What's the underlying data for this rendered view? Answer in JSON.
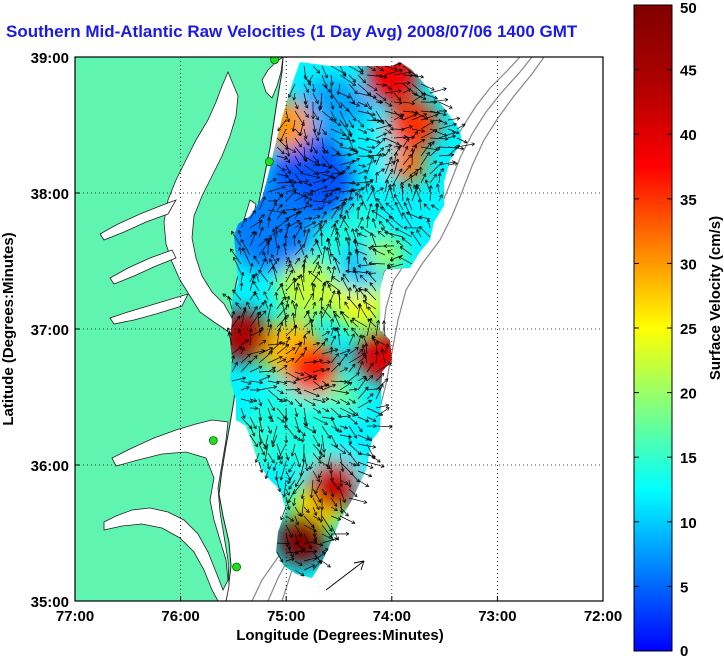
{
  "title": "Southern Mid-Atlantic Raw Velocities (1 Day Avg) 2008/07/06 1400 GMT",
  "colors": {
    "land": "#5ff5b0",
    "ocean": "#ffffff",
    "coast": "#222222",
    "bathy": "#888888",
    "arrow": "#000000",
    "station": "#22dd22",
    "title": "#1a1ae6"
  },
  "chart_data": {
    "type": "heatmap",
    "xlabel": "Longitude (Degrees:Minutes)",
    "ylabel": "Latitude (Degrees:Minutes)",
    "xlim": [
      -77.0,
      -72.0
    ],
    "ylim": [
      35.0,
      39.0
    ],
    "x_ticks": [
      {
        "value": -77.0,
        "label": "77:00"
      },
      {
        "value": -76.0,
        "label": "76:00"
      },
      {
        "value": -75.0,
        "label": "75:00"
      },
      {
        "value": -74.0,
        "label": "74:00"
      },
      {
        "value": -73.0,
        "label": "73:00"
      },
      {
        "value": -72.0,
        "label": "72:00"
      }
    ],
    "y_ticks": [
      {
        "value": 35.0,
        "label": "35:00"
      },
      {
        "value": 36.0,
        "label": "36:00"
      },
      {
        "value": 37.0,
        "label": "37:00"
      },
      {
        "value": 38.0,
        "label": "38:00"
      },
      {
        "value": 39.0,
        "label": "39:00"
      }
    ],
    "grid": true,
    "colorbar": {
      "label": "Surface Velocity (cm/s)",
      "min": 0,
      "max": 50,
      "ticks": [
        0,
        5,
        10,
        15,
        20,
        25,
        30,
        35,
        40,
        45,
        50
      ],
      "colormap": "jet"
    },
    "stations": [
      {
        "lon": -75.11,
        "lat": 38.98
      },
      {
        "lon": -75.16,
        "lat": 38.23
      },
      {
        "lon": -75.69,
        "lat": 36.18
      },
      {
        "lon": -75.47,
        "lat": 35.25
      }
    ],
    "velocity_hotspots": [
      {
        "lon": -74.85,
        "lat": 35.45,
        "speed_cm_s": 50
      },
      {
        "lon": -74.55,
        "lat": 35.85,
        "speed_cm_s": 42
      },
      {
        "lon": -75.4,
        "lat": 36.95,
        "speed_cm_s": 44
      },
      {
        "lon": -74.75,
        "lat": 36.7,
        "speed_cm_s": 36
      },
      {
        "lon": -74.1,
        "lat": 36.8,
        "speed_cm_s": 40
      },
      {
        "lon": -73.8,
        "lat": 38.5,
        "speed_cm_s": 35
      },
      {
        "lon": -74.0,
        "lat": 38.85,
        "speed_cm_s": 38
      },
      {
        "lon": -75.0,
        "lat": 38.5,
        "speed_cm_s": 30
      }
    ],
    "velocity_lows": [
      {
        "lon": -74.75,
        "lat": 38.1,
        "speed_cm_s": 4
      },
      {
        "lon": -75.15,
        "lat": 37.75,
        "speed_cm_s": 6
      },
      {
        "lon": -74.5,
        "lat": 36.1,
        "speed_cm_s": 12
      },
      {
        "lon": -74.9,
        "lat": 36.3,
        "speed_cm_s": 14
      }
    ]
  }
}
